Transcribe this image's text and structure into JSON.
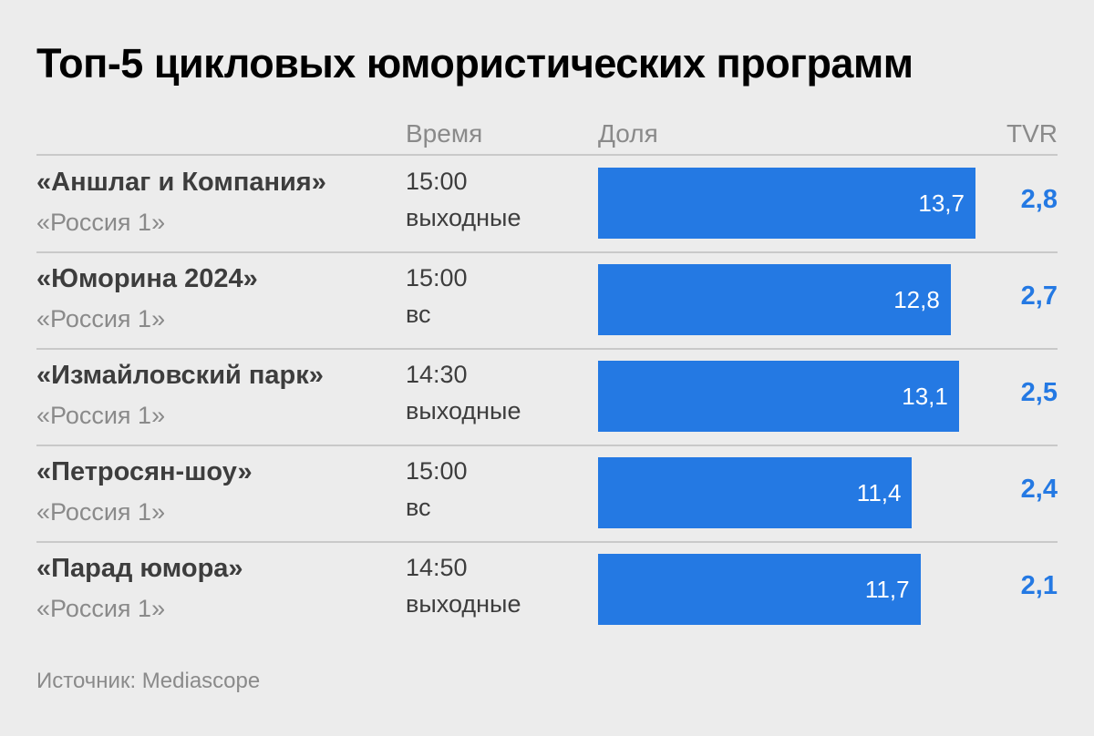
{
  "chart_data": {
    "type": "table",
    "title": "Топ-5 цикловых юмористических программ",
    "columns": [
      "",
      "Время",
      "Доля",
      "TVR"
    ],
    "rows": [
      {
        "name": "«Аншлаг и Компания»",
        "channel": "«Россия 1»",
        "time": "15:00",
        "days": "выходные",
        "share": 13.7,
        "share_label": "13,7",
        "tvr": "2,8"
      },
      {
        "name": "«Юморина 2024»",
        "channel": "«Россия 1»",
        "time": "15:00",
        "days": "вс",
        "share": 12.8,
        "share_label": "12,8",
        "tvr": "2,7"
      },
      {
        "name": "«Измайловский парк»",
        "channel": "«Россия 1»",
        "time": "14:30",
        "days": "выходные",
        "share": 13.1,
        "share_label": "13,1",
        "tvr": "2,5"
      },
      {
        "name": "«Петросян-шоу»",
        "channel": "«Россия 1»",
        "time": "15:00",
        "days": "вс",
        "share": 11.4,
        "share_label": "11,4",
        "tvr": "2,4"
      },
      {
        "name": "«Парад юмора»",
        "channel": "«Россия 1»",
        "time": "14:50",
        "days": "выходные",
        "share": 11.7,
        "share_label": "11,7",
        "tvr": "2,1"
      }
    ],
    "source": "Источник: Mediascope",
    "bar_color": "#2479e3",
    "tvr_color": "#2479e3",
    "background": "#ececec"
  }
}
